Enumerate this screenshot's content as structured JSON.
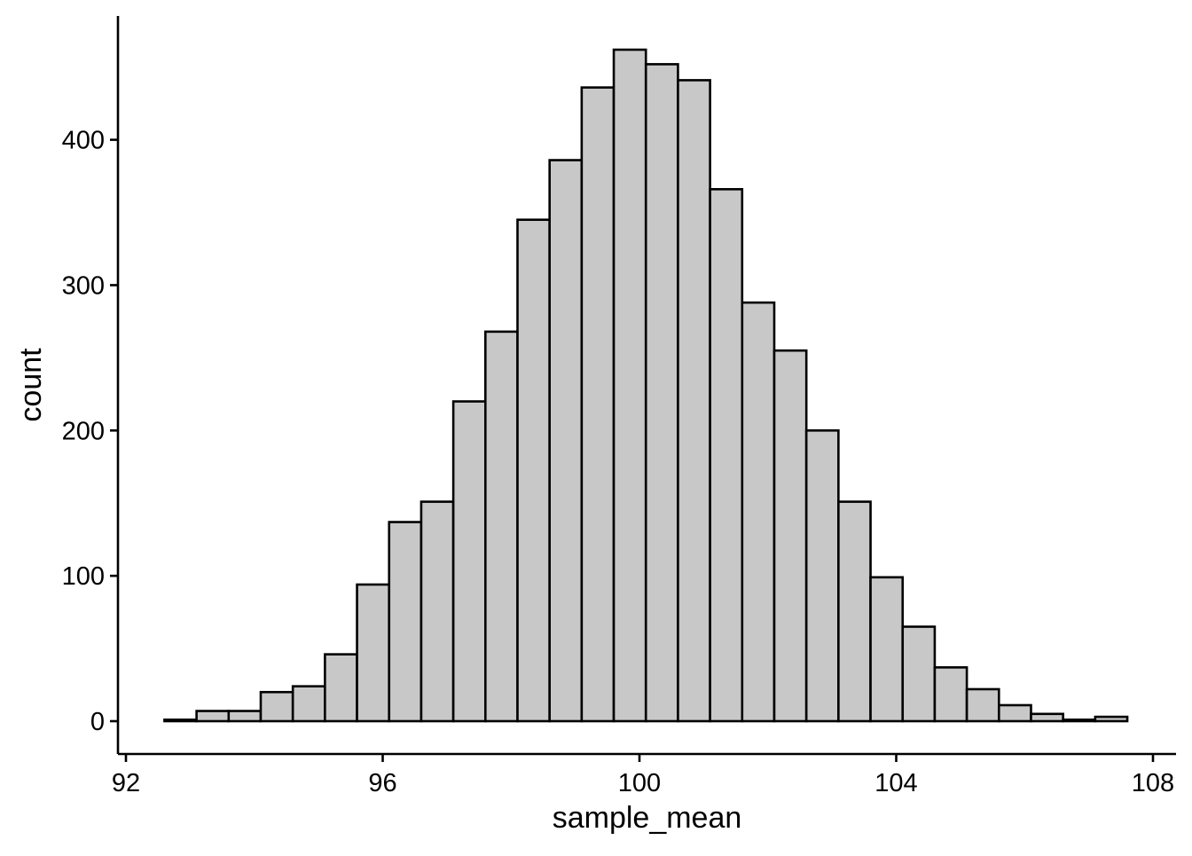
{
  "chart_data": {
    "type": "bar",
    "title": "",
    "xlabel": "sample_mean",
    "ylabel": "count",
    "xlim": [
      92,
      108
    ],
    "ylim": [
      0,
      475
    ],
    "x_ticks": [
      92,
      96,
      100,
      104,
      108
    ],
    "y_ticks": [
      0,
      100,
      200,
      300,
      400
    ],
    "grid": false,
    "legend": "none",
    "bar_fill": "#c8c8c8",
    "bar_stroke": "#000000",
    "bin_width": 0.5,
    "bins": [
      {
        "x0": 92.6,
        "x1": 93.1,
        "count": 1
      },
      {
        "x0": 93.1,
        "x1": 93.6,
        "count": 7
      },
      {
        "x0": 93.6,
        "x1": 94.1,
        "count": 7
      },
      {
        "x0": 94.1,
        "x1": 94.6,
        "count": 20
      },
      {
        "x0": 94.6,
        "x1": 95.1,
        "count": 24
      },
      {
        "x0": 95.1,
        "x1": 95.6,
        "count": 46
      },
      {
        "x0": 95.6,
        "x1": 96.1,
        "count": 94
      },
      {
        "x0": 96.1,
        "x1": 96.6,
        "count": 137
      },
      {
        "x0": 96.6,
        "x1": 97.1,
        "count": 151
      },
      {
        "x0": 97.1,
        "x1": 97.6,
        "count": 220
      },
      {
        "x0": 97.6,
        "x1": 98.1,
        "count": 268
      },
      {
        "x0": 98.1,
        "x1": 98.6,
        "count": 345
      },
      {
        "x0": 98.6,
        "x1": 99.1,
        "count": 386
      },
      {
        "x0": 99.1,
        "x1": 99.6,
        "count": 436
      },
      {
        "x0": 99.6,
        "x1": 100.1,
        "count": 462
      },
      {
        "x0": 100.1,
        "x1": 100.6,
        "count": 452
      },
      {
        "x0": 100.6,
        "x1": 101.1,
        "count": 441
      },
      {
        "x0": 101.1,
        "x1": 101.6,
        "count": 366
      },
      {
        "x0": 101.6,
        "x1": 102.1,
        "count": 288
      },
      {
        "x0": 102.1,
        "x1": 102.6,
        "count": 255
      },
      {
        "x0": 102.6,
        "x1": 103.1,
        "count": 200
      },
      {
        "x0": 103.1,
        "x1": 103.6,
        "count": 151
      },
      {
        "x0": 103.6,
        "x1": 104.1,
        "count": 99
      },
      {
        "x0": 104.1,
        "x1": 104.6,
        "count": 65
      },
      {
        "x0": 104.6,
        "x1": 105.1,
        "count": 37
      },
      {
        "x0": 105.1,
        "x1": 105.6,
        "count": 22
      },
      {
        "x0": 105.6,
        "x1": 106.1,
        "count": 11
      },
      {
        "x0": 106.1,
        "x1": 106.6,
        "count": 5
      },
      {
        "x0": 106.6,
        "x1": 107.1,
        "count": 1
      },
      {
        "x0": 107.1,
        "x1": 107.6,
        "count": 3
      }
    ]
  }
}
